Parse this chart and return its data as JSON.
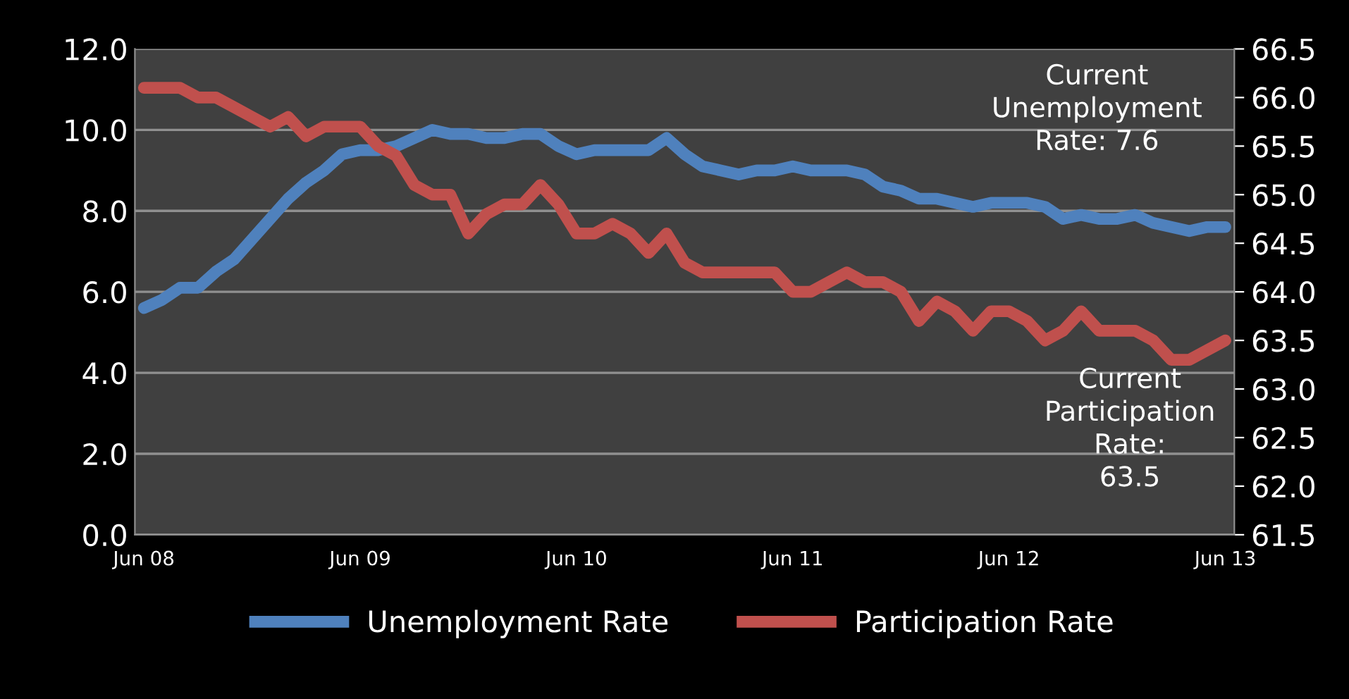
{
  "chart_data": {
    "type": "line",
    "categories": [
      "Jun 08",
      null,
      null,
      null,
      null,
      null,
      null,
      null,
      null,
      null,
      null,
      null,
      "Jun 09",
      null,
      null,
      null,
      null,
      null,
      null,
      null,
      null,
      null,
      null,
      null,
      "Jun 10",
      null,
      null,
      null,
      null,
      null,
      null,
      null,
      null,
      null,
      null,
      null,
      "Jun 11",
      null,
      null,
      null,
      null,
      null,
      null,
      null,
      null,
      null,
      null,
      null,
      "Jun 12",
      null,
      null,
      null,
      null,
      null,
      null,
      null,
      null,
      null,
      null,
      null,
      "Jun 13"
    ],
    "series": [
      {
        "name": "Unemployment Rate",
        "color": "#4f81bd",
        "values": [
          5.6,
          5.8,
          6.1,
          6.1,
          6.5,
          6.8,
          7.3,
          7.8,
          8.3,
          8.7,
          9.0,
          9.4,
          9.5,
          9.5,
          9.6,
          9.8,
          10.0,
          9.9,
          9.9,
          9.8,
          9.8,
          9.9,
          9.9,
          9.6,
          9.4,
          9.5,
          9.5,
          9.5,
          9.5,
          9.8,
          9.4,
          9.1,
          9.0,
          8.9,
          9.0,
          9.0,
          9.1,
          9.0,
          9.0,
          9.0,
          8.9,
          8.6,
          8.5,
          8.3,
          8.3,
          8.2,
          8.1,
          8.2,
          8.2,
          8.2,
          8.1,
          7.8,
          7.9,
          7.8,
          7.8,
          7.9,
          7.7,
          7.6,
          7.5,
          7.6,
          7.6
        ]
      },
      {
        "name": "Participation Rate",
        "color": "#c0504d",
        "axis": "y2",
        "values": [
          66.1,
          66.1,
          66.1,
          66.0,
          66.0,
          65.9,
          65.8,
          65.7,
          65.8,
          65.6,
          65.7,
          65.7,
          65.7,
          65.5,
          65.4,
          65.1,
          65.0,
          65.0,
          64.6,
          64.8,
          64.9,
          64.9,
          65.1,
          64.9,
          64.6,
          64.6,
          64.7,
          64.6,
          64.4,
          64.6,
          64.3,
          64.2,
          64.2,
          64.2,
          64.2,
          64.2,
          64.0,
          64.0,
          64.1,
          64.2,
          64.1,
          64.1,
          64.0,
          63.7,
          63.9,
          63.8,
          63.6,
          63.8,
          63.8,
          63.7,
          63.5,
          63.6,
          63.8,
          63.6,
          63.6,
          63.6,
          63.5,
          63.3,
          63.3,
          63.4,
          63.5
        ]
      }
    ],
    "ylim": [
      0,
      12
    ],
    "yticks": [
      {
        "value": 0,
        "label": "0.0"
      },
      {
        "value": 2,
        "label": "2.0"
      },
      {
        "value": 4,
        "label": "4.0"
      },
      {
        "value": 6,
        "label": "6.0"
      },
      {
        "value": 8,
        "label": "8.0"
      },
      {
        "value": 10,
        "label": "10.0"
      },
      {
        "value": 12,
        "label": "12.0"
      }
    ],
    "y2lim": [
      61.5,
      66.5
    ],
    "y2ticks": [
      61.5,
      {
        "value": 62,
        "label": "62.0"
      },
      62.5,
      {
        "value": 63,
        "label": "63.0"
      },
      63.5,
      {
        "value": 64,
        "label": "64.0"
      },
      64.5,
      {
        "value": 65,
        "label": "65.0"
      },
      65.5,
      {
        "value": 66,
        "label": "66.0"
      },
      66.5
    ],
    "grid": "y",
    "legend": "bottom",
    "marker": "none",
    "line_style": "solid",
    "annotations": [
      "Current\nUnemployment\nRate: 7.6",
      "Current\nParticipation\nRate:\n63.5"
    ]
  }
}
